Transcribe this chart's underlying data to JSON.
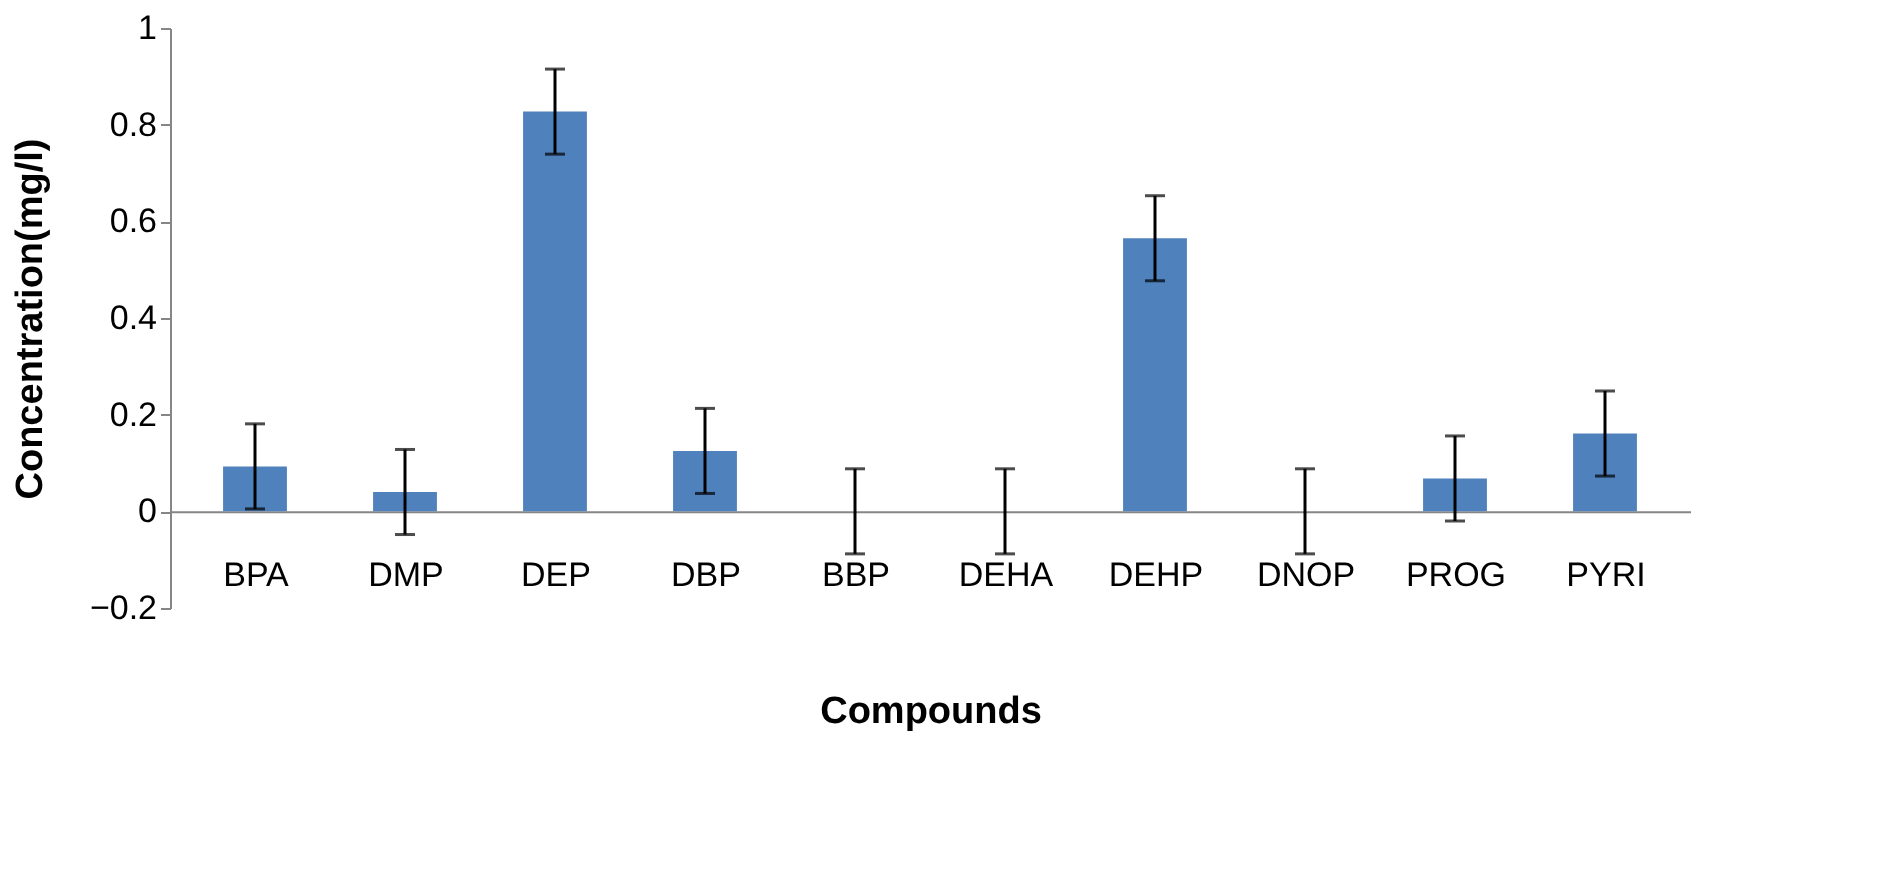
{
  "chart_data": {
    "type": "bar",
    "xlabel": "Compounds",
    "ylabel": "Concentration(mg/l)",
    "categories": [
      "BPA",
      "DMP",
      "DEP",
      "DBP",
      "BBP",
      "DEHA",
      "DEHP",
      "DNOP",
      "PROG",
      "PYRI"
    ],
    "values": [
      0.093,
      0.04,
      0.827,
      0.125,
      0,
      0,
      0.565,
      0,
      0.068,
      0.161
    ],
    "errors": [
      0.088,
      0.088,
      0.088,
      0.088,
      0.088,
      0.088,
      0.088,
      0.088,
      0.088,
      0.088
    ],
    "color": "#4f81bd",
    "ylim": [
      -0.2,
      1
    ],
    "yticks": [
      -0.2,
      0,
      0.2,
      0.4,
      0.6,
      0.8,
      1
    ],
    "grid": false
  }
}
